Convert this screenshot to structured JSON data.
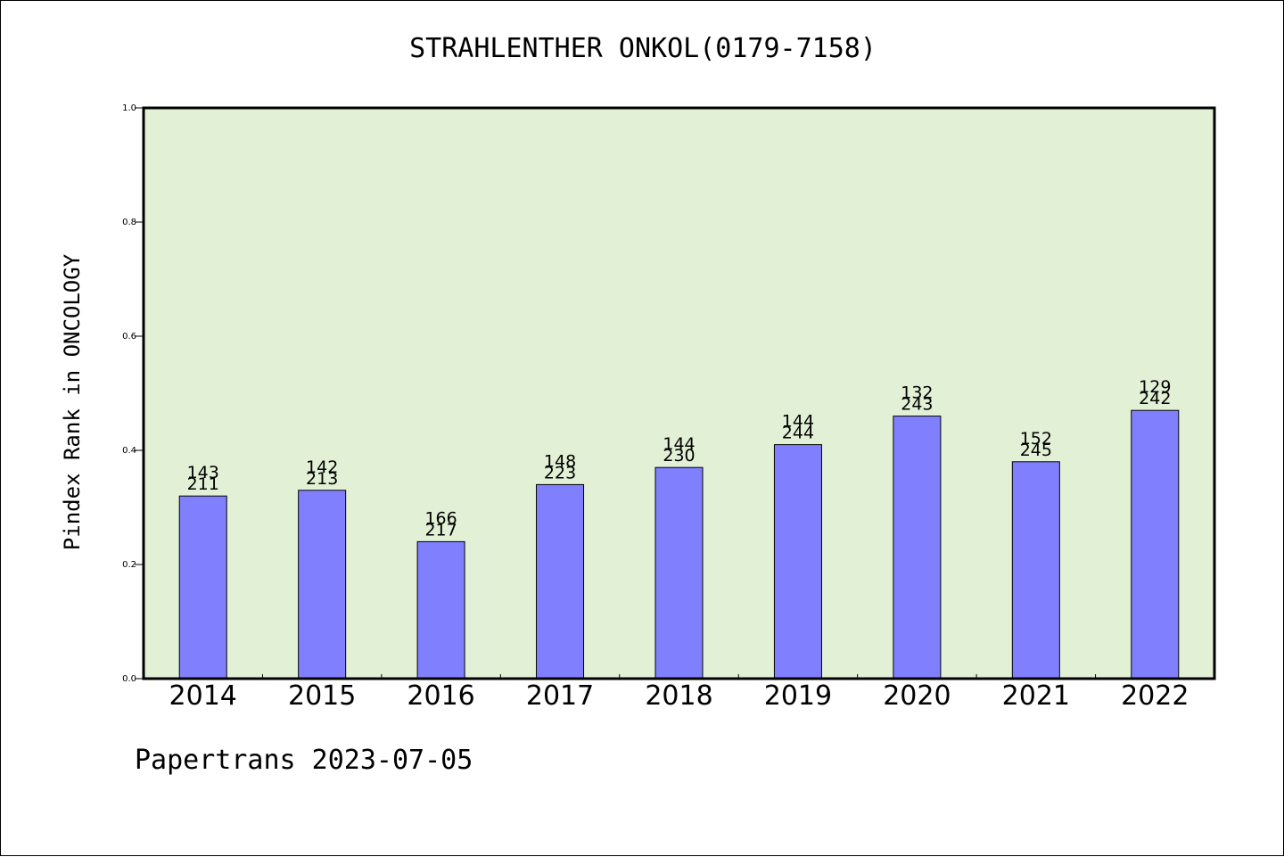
{
  "chart_data": {
    "type": "bar",
    "title": "STRAHLENTHER ONKOL(0179-7158)",
    "ylabel": "Pindex Rank in ONCOLOGY",
    "xlabel": "",
    "categories": [
      "2014",
      "2015",
      "2016",
      "2017",
      "2018",
      "2019",
      "2020",
      "2021",
      "2022"
    ],
    "values": [
      0.32,
      0.33,
      0.24,
      0.34,
      0.37,
      0.41,
      0.46,
      0.38,
      0.47
    ],
    "bar_labels_top": [
      "143",
      "142",
      "166",
      "148",
      "144",
      "144",
      "132",
      "152",
      "129"
    ],
    "bar_labels_bottom": [
      "211",
      "213",
      "217",
      "223",
      "230",
      "244",
      "243",
      "245",
      "242"
    ],
    "ylim": [
      0,
      1.0
    ],
    "yticks": [
      "0.0",
      "0.2",
      "0.4",
      "0.6",
      "0.8",
      "1.0"
    ],
    "grid": false,
    "colors": {
      "plot_background": "#e2f0d6",
      "bar_fill": "#8080ff",
      "bar_stroke": "#000000"
    }
  },
  "footer": "Papertrans 2023-07-05"
}
